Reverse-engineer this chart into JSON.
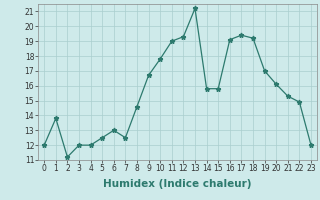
{
  "x": [
    0,
    1,
    2,
    3,
    4,
    5,
    6,
    7,
    8,
    9,
    10,
    11,
    12,
    13,
    14,
    15,
    16,
    17,
    18,
    19,
    20,
    21,
    22,
    23
  ],
  "y": [
    12,
    13.8,
    11.2,
    12,
    12,
    12.5,
    13,
    12.5,
    14.6,
    16.7,
    17.8,
    19.0,
    19.3,
    21.2,
    15.8,
    15.8,
    19.1,
    19.4,
    19.2,
    17.0,
    16.1,
    15.3,
    14.9,
    12.0
  ],
  "line_color": "#2d7a6e",
  "marker": "*",
  "marker_size": 3.5,
  "bg_color": "#ceeaea",
  "grid_color": "#aacece",
  "xlabel": "Humidex (Indice chaleur)",
  "xlim": [
    -0.5,
    23.5
  ],
  "ylim": [
    11,
    21.5
  ],
  "yticks": [
    11,
    12,
    13,
    14,
    15,
    16,
    17,
    18,
    19,
    20,
    21
  ],
  "xticks": [
    0,
    1,
    2,
    3,
    4,
    5,
    6,
    7,
    8,
    9,
    10,
    11,
    12,
    13,
    14,
    15,
    16,
    17,
    18,
    19,
    20,
    21,
    22,
    23
  ],
  "tick_fontsize": 5.5,
  "xlabel_fontsize": 7.5,
  "line_width": 0.9
}
